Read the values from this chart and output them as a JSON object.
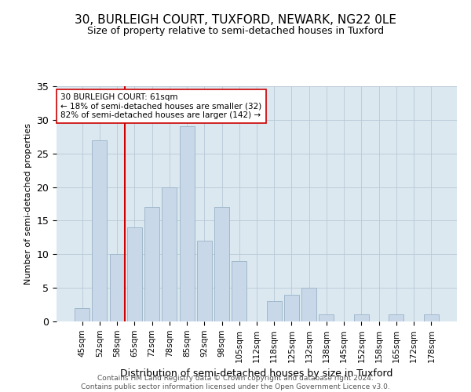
{
  "title": "30, BURLEIGH COURT, TUXFORD, NEWARK, NG22 0LE",
  "subtitle": "Size of property relative to semi-detached houses in Tuxford",
  "xlabel": "Distribution of semi-detached houses by size in Tuxford",
  "ylabel": "Number of semi-detached properties",
  "categories": [
    "45sqm",
    "52sqm",
    "58sqm",
    "65sqm",
    "72sqm",
    "78sqm",
    "85sqm",
    "92sqm",
    "98sqm",
    "105sqm",
    "112sqm",
    "118sqm",
    "125sqm",
    "132sqm",
    "138sqm",
    "145sqm",
    "152sqm",
    "158sqm",
    "165sqm",
    "172sqm",
    "178sqm"
  ],
  "values": [
    2,
    27,
    10,
    14,
    17,
    20,
    29,
    12,
    17,
    9,
    0,
    3,
    4,
    5,
    1,
    0,
    1,
    0,
    1,
    0,
    1
  ],
  "bar_color": "#c8d8e8",
  "bar_edge_color": "#a0b8cc",
  "highlight_bar_index": 2,
  "highlight_color": "#cc0000",
  "property_label": "30 BURLEIGH COURT: 61sqm",
  "smaller_pct": "18%",
  "smaller_count": 32,
  "larger_pct": "82%",
  "larger_count": 142,
  "ylim": [
    0,
    35
  ],
  "yticks": [
    0,
    5,
    10,
    15,
    20,
    25,
    30,
    35
  ],
  "bg_color": "#ffffff",
  "plot_bg_color": "#dce8f0",
  "grid_color": "#b8c8d8",
  "footer": "Contains HM Land Registry data © Crown copyright and database right 2024.\nContains public sector information licensed under the Open Government Licence v3.0."
}
